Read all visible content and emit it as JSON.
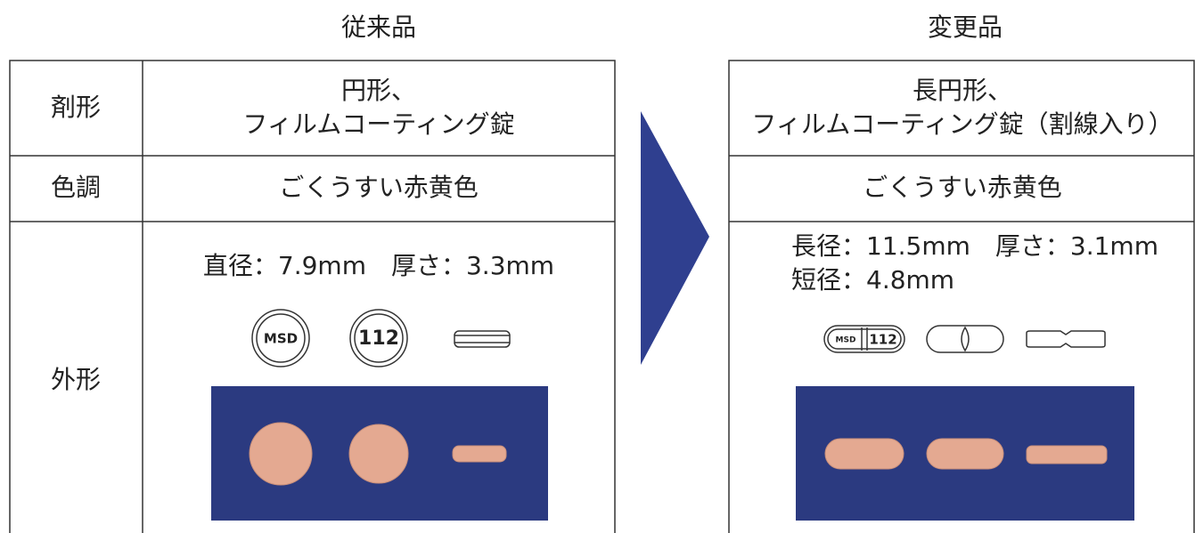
{
  "old": {
    "title": "従来品",
    "rows": [
      {
        "label": "剤形",
        "lines": [
          "円形、",
          "フィルムコーティング錠"
        ]
      },
      {
        "label": "色調",
        "lines": [
          "ごくうすい赤黄色"
        ]
      },
      {
        "label": "外形",
        "lines": [
          "直径：7.9mm　厚さ：3.3mm"
        ]
      }
    ],
    "imprints": [
      "MSD",
      "112"
    ]
  },
  "new": {
    "title": "変更品",
    "rows": [
      {
        "lines": [
          "長円形、",
          "フィルムコーティング錠（割線入り）"
        ]
      },
      {
        "lines": [
          "ごくうすい赤黄色"
        ]
      },
      {
        "lines": [
          "長径：11.5mm　厚さ：3.1mm",
          "短径：4.8mm"
        ]
      }
    ],
    "imprints": [
      "MSD",
      "112"
    ]
  }
}
